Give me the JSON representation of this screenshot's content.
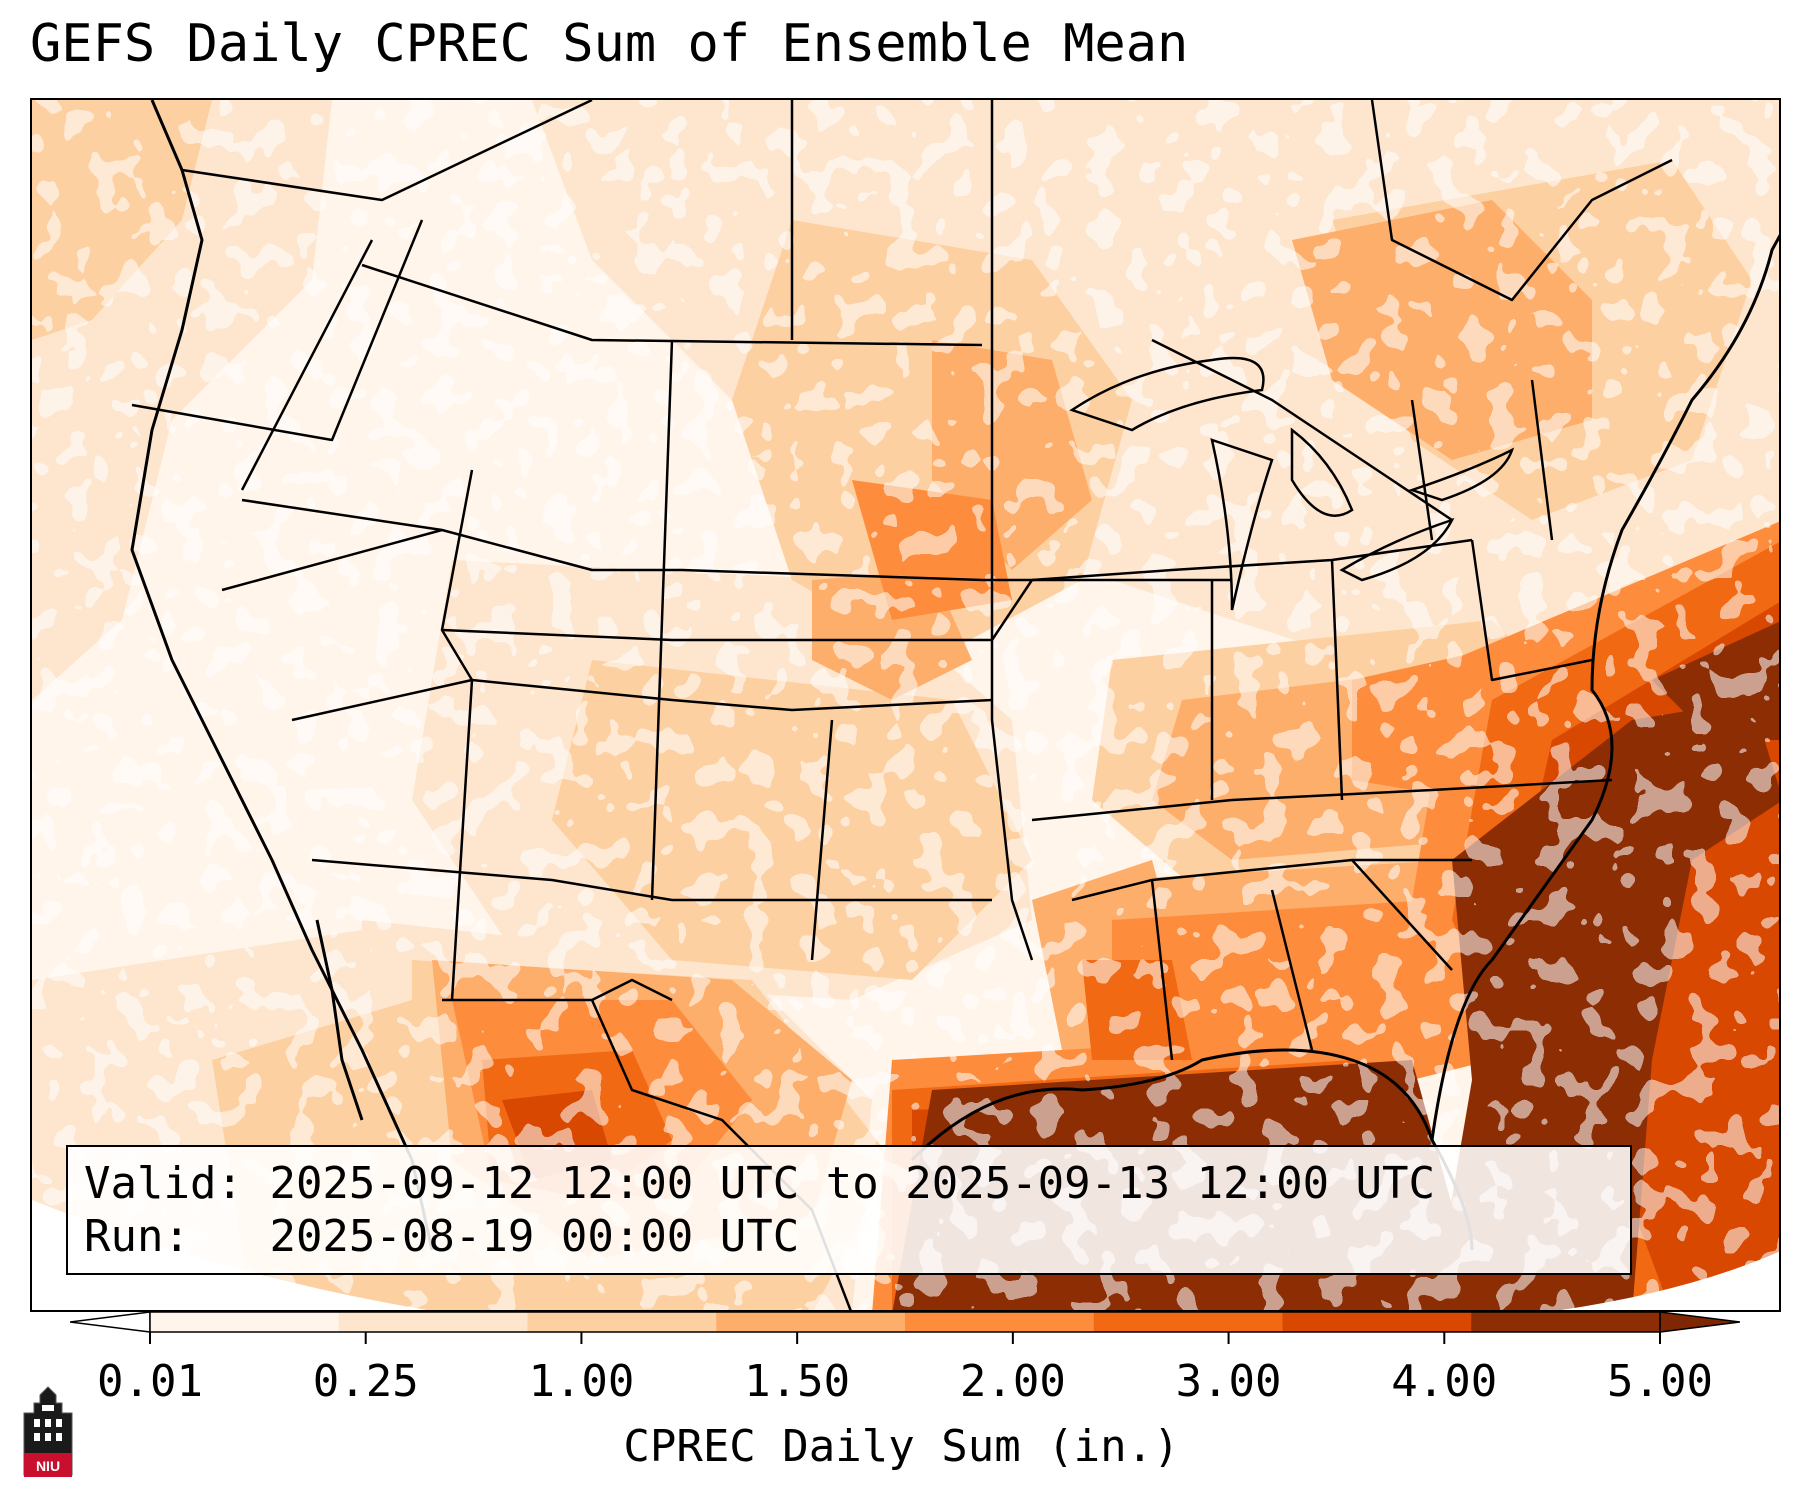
{
  "title": "GEFS Daily CPREC Sum of Ensemble Mean",
  "info": {
    "valid_label": "Valid:",
    "valid_value": "2025-09-12 12:00 UTC to 2025-09-13 12:00 UTC",
    "run_label": "Run:",
    "run_value": "2025-08-19 00:00 UTC"
  },
  "colorbar": {
    "label": "CPREC Daily Sum (in.)",
    "ticks": [
      "0.01",
      "0.25",
      "1.00",
      "1.50",
      "2.00",
      "3.00",
      "4.00",
      "5.00"
    ],
    "colors": [
      "#fff5eb",
      "#fee6ce",
      "#fdd0a2",
      "#fdae6b",
      "#fd8d3c",
      "#f16913",
      "#d94801",
      "#8c2d04"
    ],
    "under_color": "#ffffff",
    "over_color": "#7f2704",
    "extend": "both"
  },
  "logo": {
    "text": "NIU",
    "icon": "university-tower-icon"
  },
  "map": {
    "projection": "Lambert conformal, CONUS",
    "boundaries": [
      "coastlines",
      "state-lines",
      "country-borders"
    ]
  }
}
